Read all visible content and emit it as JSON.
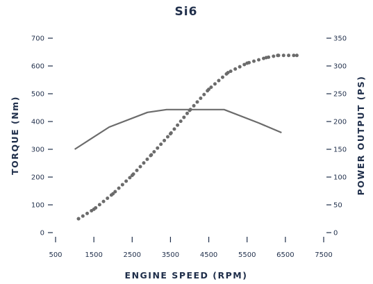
{
  "chart_data": {
    "type": "line",
    "title": "Si6",
    "xlabel": "ENGINE SPEED (RPM)",
    "ylabel_left": "TORQUE (Nm)",
    "ylabel_right": "POWER OUTPUT (PS)",
    "xlim": [
      500,
      7500
    ],
    "ylim_left": [
      0,
      700
    ],
    "ylim_right": [
      0,
      350
    ],
    "x_ticks": [
      500,
      1500,
      2500,
      3500,
      4500,
      5500,
      6500,
      7500
    ],
    "y_left_ticks": [
      0,
      100,
      200,
      300,
      400,
      500,
      600,
      700
    ],
    "y_right_ticks": [
      0,
      50,
      100,
      150,
      200,
      250,
      300,
      350
    ],
    "grid": false,
    "line_color": "#6b6b6b",
    "text_color": "#1f2e4a",
    "series": [
      {
        "axis": "left",
        "style": "solid",
        "x": [
          1000,
          1900,
          2900,
          3400,
          4000,
          4900,
          5800,
          6400
        ],
        "values": [
          300,
          380,
          433,
          443,
          443,
          443,
          395,
          360
        ]
      },
      {
        "axis": "right",
        "style": "dotted",
        "x": [
          1100,
          1500,
          2000,
          2500,
          3000,
          3500,
          4000,
          4500,
          5000,
          5500,
          6000,
          6300,
          6800
        ],
        "values": [
          25,
          42,
          70,
          103,
          140,
          178,
          220,
          258,
          288,
          305,
          315,
          319,
          319
        ]
      }
    ]
  }
}
